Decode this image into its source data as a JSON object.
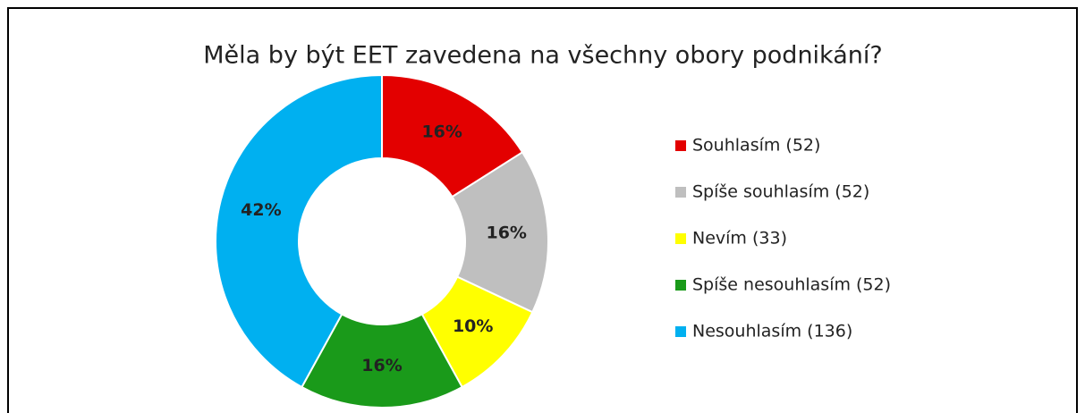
{
  "chart_data": {
    "type": "pie",
    "title": "Měla by být EET zavedena na všechny obory podnikání?",
    "categories": [
      "Souhlasím (52)",
      "Spíše souhlasím (52)",
      "Nevím (33)",
      "Spíše nesouhlasím (52)",
      "Nesouhlasím (136)"
    ],
    "values": [
      16,
      16,
      10,
      16,
      42
    ],
    "value_labels": [
      "16%",
      "16%",
      "10%",
      "16%",
      "42%"
    ],
    "colors": [
      "#e30000",
      "#bfbfbf",
      "#ffff00",
      "#1a9a1a",
      "#00b0f0"
    ],
    "legend": "right"
  }
}
